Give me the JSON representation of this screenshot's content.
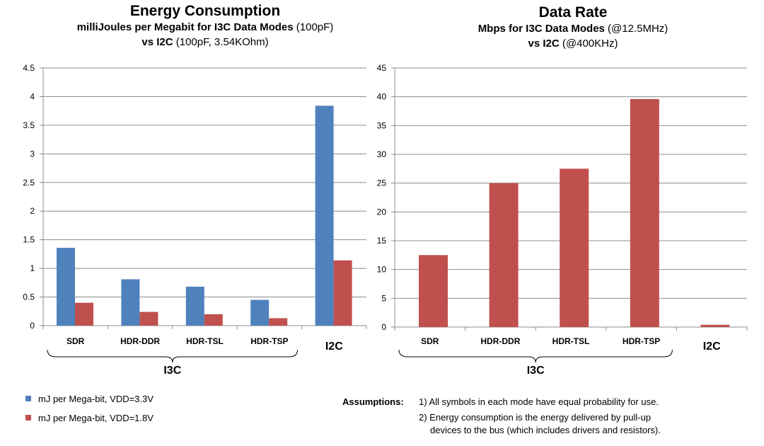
{
  "left_title": {
    "main": "Energy Consumption",
    "line2_bold": "milliJoules per Megabit for I3C Data Modes",
    "line2_rest": "(100pF)",
    "line3_bold": "vs I2C",
    "line3_rest": "(100pF, 3.54KOhm)"
  },
  "right_title": {
    "main": "Data Rate",
    "line2_bold": "Mbps for I3C Data Modes",
    "line2_rest": "(@12.5MHz)",
    "line3_bold": "vs I2C",
    "line3_rest": "(@400KHz)"
  },
  "colors": {
    "blue": "#4f81bd",
    "red": "#c0504d",
    "grid": "#8c8c8c",
    "axis": "#8c8c8c"
  },
  "chart_data": [
    {
      "type": "bar",
      "title": "Energy Consumption",
      "categories": [
        "SDR",
        "HDR-DDR",
        "HDR-TSL",
        "HDR-TSP",
        "I2C"
      ],
      "series": [
        {
          "name": "mJ per Mega-bit, VDD=3.3V",
          "values": [
            1.36,
            0.81,
            0.68,
            0.45,
            3.84
          ]
        },
        {
          "name": "mJ per Mega-bit, VDD=1.8V",
          "values": [
            0.4,
            0.24,
            0.2,
            0.13,
            1.14
          ]
        }
      ],
      "ylim": [
        0,
        4.5
      ],
      "yticks": [
        "0",
        "0.5",
        "1",
        "1.5",
        "2",
        "2.5",
        "3",
        "3.5",
        "4",
        "4.5"
      ],
      "group_label": "I3C",
      "grid": true
    },
    {
      "type": "bar",
      "title": "Data Rate",
      "categories": [
        "SDR",
        "HDR-DDR",
        "HDR-TSL",
        "HDR-TSP",
        "I2C"
      ],
      "series": [
        {
          "name": "Mbps",
          "values": [
            12.5,
            25,
            27.5,
            39.6,
            0.4
          ]
        }
      ],
      "ylim": [
        0,
        45
      ],
      "yticks": [
        "0",
        "5",
        "10",
        "15",
        "20",
        "25",
        "30",
        "35",
        "40",
        "45"
      ],
      "group_label": "I3C",
      "grid": true
    }
  ],
  "legend": [
    {
      "label": "mJ per Mega-bit, VDD=3.3V"
    },
    {
      "label": "mJ per Mega-bit, VDD=1.8V"
    }
  ],
  "assumptions": {
    "label": "Assumptions:",
    "item1": "1) All symbols in each mode have equal probability for use.",
    "item2a": "2) Energy consumption is the energy delivered by pull-up",
    "item2b": "devices to the bus (which includes drivers and resistors)."
  }
}
